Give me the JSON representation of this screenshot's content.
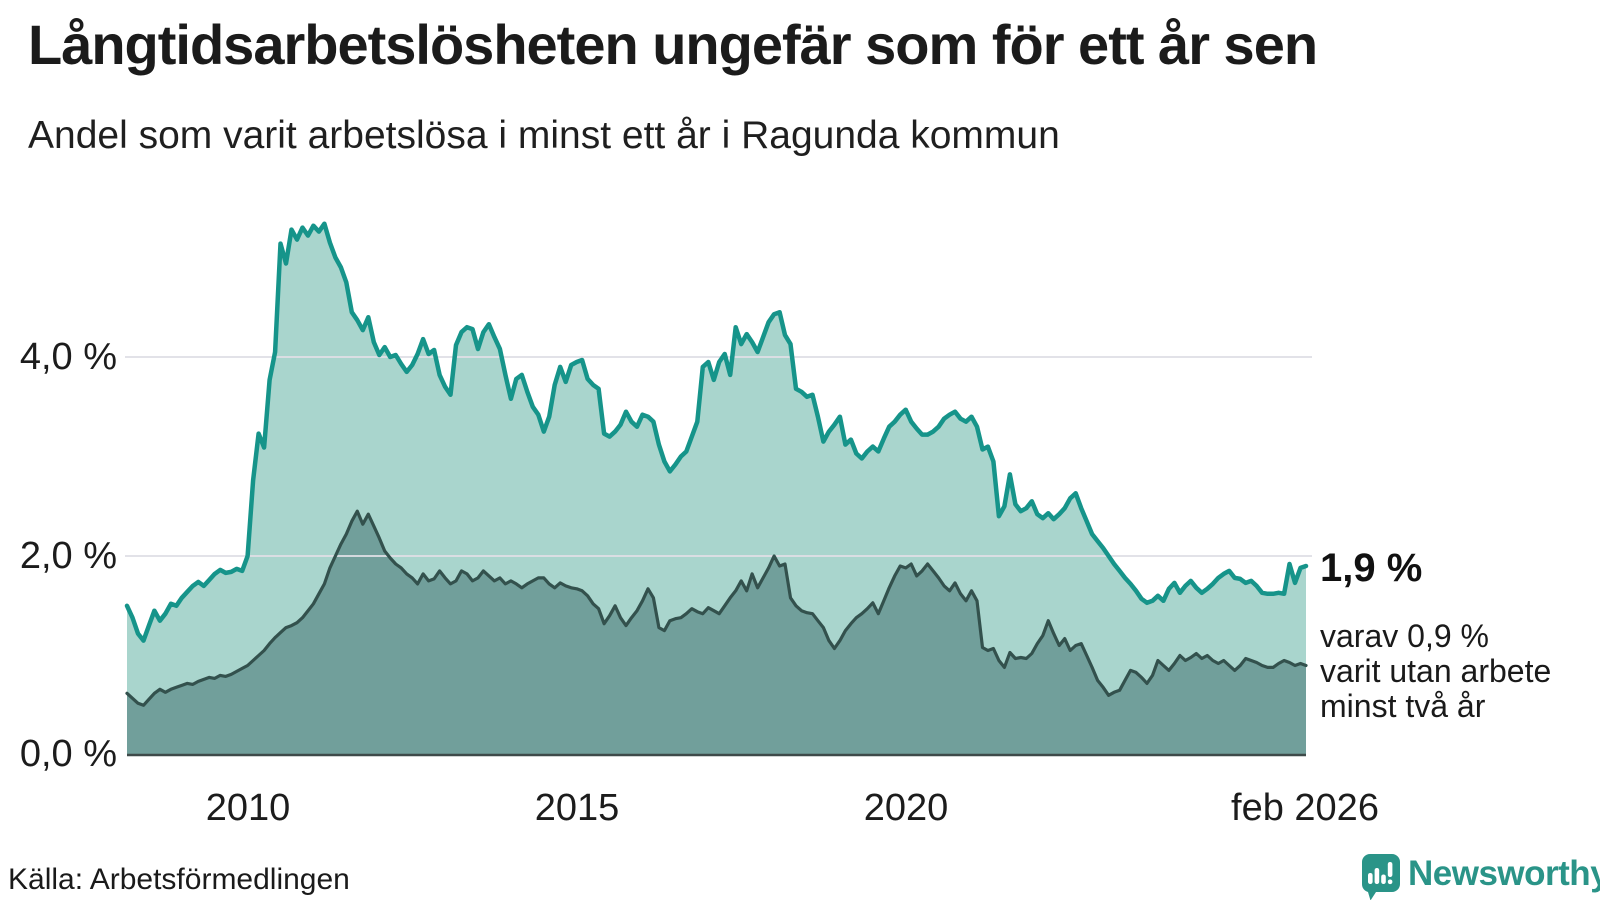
{
  "header": {
    "title": "Långtidsarbetslösheten ungefär som för ett år sen",
    "subtitle": "Andel som varit arbetslösa i minst ett år i Ragunda kommun"
  },
  "source_label": "Källa: Arbetsförmedlingen",
  "logo": {
    "name": "Newsworthy",
    "color": "#2a9488"
  },
  "colors": {
    "line_total": "#16948a",
    "fill_total": "#a9d5cd",
    "line_two_years": "#33514d",
    "fill_two_years": "#719f9b",
    "gridline": "#dfdfe5",
    "axis_line": "#3e4a49",
    "text": "#1c1c1c"
  },
  "chart_data": {
    "type": "area",
    "title": "Långtidsarbetslösheten ungefär som för ett år sen",
    "subtitle": "Andel som varit arbetslösa i minst ett år i Ragunda kommun",
    "unit": "percent",
    "freq": "monthly",
    "x_start": "2008-03",
    "x_end": "2026-02",
    "ylim": [
      0,
      5.6
    ],
    "grid": "horizontal-only",
    "legend_position": "none",
    "yticks": [
      {
        "label": "0,0 %",
        "value": 0
      },
      {
        "label": "2,0 %",
        "value": 2
      },
      {
        "label": "4,0 %",
        "value": 4
      }
    ],
    "xticks": [
      {
        "label": "2010",
        "month_index": 22
      },
      {
        "label": "2015",
        "month_index": 82
      },
      {
        "label": "2020",
        "month_index": 142
      },
      {
        "label": "feb 2026",
        "month_index": 215
      }
    ],
    "annotations": {
      "end_value_label": "1,9 %",
      "note_lines": [
        "varav 0,9 %",
        "varit utan arbete",
        "minst två år"
      ]
    },
    "series": [
      {
        "name": "Arbetslösa minst ett år",
        "end_value": 1.9,
        "values": [
          1.5,
          1.38,
          1.22,
          1.15,
          1.3,
          1.45,
          1.35,
          1.42,
          1.52,
          1.5,
          1.58,
          1.64,
          1.7,
          1.74,
          1.7,
          1.76,
          1.82,
          1.86,
          1.83,
          1.84,
          1.87,
          1.85,
          2.0,
          2.76,
          3.23,
          3.09,
          3.77,
          4.05,
          5.14,
          4.94,
          5.28,
          5.18,
          5.3,
          5.22,
          5.32,
          5.26,
          5.34,
          5.15,
          5.0,
          4.9,
          4.75,
          4.45,
          4.37,
          4.27,
          4.4,
          4.15,
          4.02,
          4.1,
          4.0,
          4.02,
          3.93,
          3.85,
          3.92,
          4.03,
          4.18,
          4.03,
          4.07,
          3.82,
          3.7,
          3.62,
          4.12,
          4.25,
          4.3,
          4.28,
          4.08,
          4.25,
          4.33,
          4.2,
          4.08,
          3.82,
          3.58,
          3.78,
          3.82,
          3.65,
          3.5,
          3.42,
          3.25,
          3.4,
          3.72,
          3.9,
          3.75,
          3.92,
          3.95,
          3.97,
          3.78,
          3.72,
          3.68,
          3.23,
          3.2,
          3.25,
          3.32,
          3.45,
          3.35,
          3.3,
          3.42,
          3.4,
          3.35,
          3.12,
          2.95,
          2.85,
          2.92,
          3.0,
          3.05,
          3.2,
          3.35,
          3.9,
          3.95,
          3.77,
          3.95,
          4.03,
          3.82,
          4.3,
          4.13,
          4.23,
          4.15,
          4.05,
          4.2,
          4.35,
          4.43,
          4.45,
          4.22,
          4.13,
          3.68,
          3.65,
          3.6,
          3.62,
          3.4,
          3.15,
          3.25,
          3.32,
          3.4,
          3.12,
          3.17,
          3.03,
          2.98,
          3.05,
          3.1,
          3.05,
          3.18,
          3.3,
          3.35,
          3.42,
          3.47,
          3.35,
          3.28,
          3.22,
          3.22,
          3.25,
          3.3,
          3.38,
          3.42,
          3.45,
          3.38,
          3.35,
          3.4,
          3.3,
          3.07,
          3.1,
          2.95,
          2.4,
          2.5,
          2.82,
          2.52,
          2.45,
          2.48,
          2.55,
          2.42,
          2.38,
          2.43,
          2.37,
          2.42,
          2.48,
          2.58,
          2.63,
          2.48,
          2.35,
          2.22,
          2.15,
          2.08,
          2.0,
          1.92,
          1.85,
          1.78,
          1.72,
          1.65,
          1.57,
          1.53,
          1.55,
          1.6,
          1.55,
          1.67,
          1.73,
          1.63,
          1.7,
          1.75,
          1.68,
          1.63,
          1.67,
          1.72,
          1.78,
          1.82,
          1.85,
          1.78,
          1.77,
          1.73,
          1.75,
          1.7,
          1.63,
          1.62,
          1.62,
          1.63,
          1.62,
          1.92,
          1.73,
          1.88,
          1.9
        ]
      },
      {
        "name": "Varav utan arbete minst två år",
        "end_value": 0.9,
        "values": [
          0.62,
          0.57,
          0.52,
          0.5,
          0.56,
          0.62,
          0.66,
          0.63,
          0.66,
          0.68,
          0.7,
          0.72,
          0.71,
          0.74,
          0.76,
          0.78,
          0.77,
          0.8,
          0.79,
          0.81,
          0.84,
          0.87,
          0.9,
          0.95,
          1.0,
          1.05,
          1.12,
          1.18,
          1.23,
          1.28,
          1.3,
          1.33,
          1.38,
          1.45,
          1.52,
          1.62,
          1.72,
          1.88,
          2.0,
          2.12,
          2.22,
          2.35,
          2.45,
          2.32,
          2.42,
          2.3,
          2.18,
          2.05,
          1.98,
          1.92,
          1.88,
          1.82,
          1.78,
          1.72,
          1.82,
          1.75,
          1.77,
          1.85,
          1.78,
          1.72,
          1.75,
          1.85,
          1.82,
          1.75,
          1.78,
          1.85,
          1.8,
          1.75,
          1.78,
          1.72,
          1.75,
          1.72,
          1.68,
          1.72,
          1.75,
          1.78,
          1.78,
          1.72,
          1.68,
          1.73,
          1.7,
          1.68,
          1.67,
          1.65,
          1.6,
          1.52,
          1.47,
          1.32,
          1.4,
          1.5,
          1.38,
          1.3,
          1.38,
          1.45,
          1.55,
          1.67,
          1.58,
          1.28,
          1.25,
          1.35,
          1.37,
          1.38,
          1.42,
          1.47,
          1.44,
          1.42,
          1.48,
          1.45,
          1.42,
          1.5,
          1.58,
          1.65,
          1.75,
          1.65,
          1.82,
          1.68,
          1.78,
          1.88,
          2.0,
          1.9,
          1.92,
          1.58,
          1.5,
          1.45,
          1.43,
          1.42,
          1.35,
          1.28,
          1.15,
          1.07,
          1.15,
          1.25,
          1.32,
          1.38,
          1.42,
          1.47,
          1.53,
          1.42,
          1.55,
          1.68,
          1.8,
          1.9,
          1.88,
          1.92,
          1.8,
          1.85,
          1.92,
          1.85,
          1.78,
          1.7,
          1.65,
          1.73,
          1.62,
          1.55,
          1.65,
          1.55,
          1.08,
          1.05,
          1.07,
          0.95,
          0.88,
          1.03,
          0.97,
          0.98,
          0.97,
          1.02,
          1.12,
          1.2,
          1.35,
          1.22,
          1.1,
          1.17,
          1.05,
          1.1,
          1.12,
          1.0,
          0.88,
          0.75,
          0.68,
          0.6,
          0.63,
          0.65,
          0.75,
          0.85,
          0.83,
          0.78,
          0.72,
          0.8,
          0.95,
          0.9,
          0.85,
          0.92,
          1.0,
          0.95,
          0.98,
          1.02,
          0.97,
          1.0,
          0.95,
          0.92,
          0.95,
          0.9,
          0.85,
          0.9,
          0.97,
          0.95,
          0.93,
          0.9,
          0.88,
          0.88,
          0.92,
          0.95,
          0.93,
          0.9,
          0.92,
          0.9
        ]
      }
    ]
  }
}
